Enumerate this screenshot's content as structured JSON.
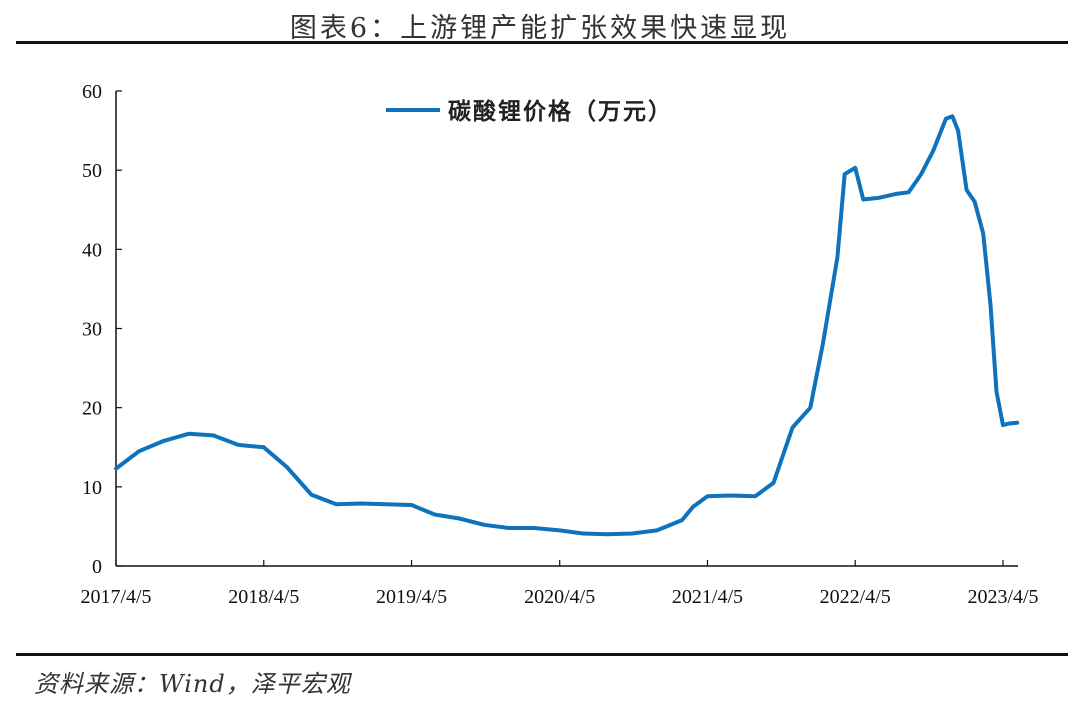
{
  "header": {
    "title": "图表6：上游锂产能扩张效果快速显现"
  },
  "footer": {
    "source": "资料来源：Wind，泽平宏观"
  },
  "chart_data": {
    "type": "line",
    "title": "图表6：上游锂产能扩张效果快速显现",
    "xlabel": "",
    "ylabel": "",
    "ylim": [
      0,
      60
    ],
    "yticks": [
      0,
      10,
      20,
      30,
      40,
      50,
      60
    ],
    "xticks": [
      "2017/4/5",
      "2018/4/5",
      "2019/4/5",
      "2020/4/5",
      "2021/4/5",
      "2022/4/5",
      "2023/4/5"
    ],
    "grid": false,
    "legend": "top-center",
    "series": [
      {
        "name": "碳酸锂价格（万元）",
        "color": "#0E72BD",
        "x": [
          "2017/4/5",
          "2017/6/1",
          "2017/8/1",
          "2017/10/1",
          "2017/12/1",
          "2018/2/1",
          "2018/4/5",
          "2018/6/1",
          "2018/8/1",
          "2018/10/1",
          "2018/12/1",
          "2019/2/1",
          "2019/4/5",
          "2019/6/1",
          "2019/8/1",
          "2019/10/1",
          "2019/12/1",
          "2020/2/1",
          "2020/4/5",
          "2020/6/1",
          "2020/8/1",
          "2020/10/1",
          "2020/12/1",
          "2021/2/1",
          "2021/3/1",
          "2021/4/5",
          "2021/6/1",
          "2021/8/1",
          "2021/9/15",
          "2021/11/1",
          "2021/12/15",
          "2022/1/15",
          "2022/2/20",
          "2022/3/10",
          "2022/4/5",
          "2022/4/25",
          "2022/6/1",
          "2022/7/15",
          "2022/8/15",
          "2022/9/15",
          "2022/10/15",
          "2022/11/15",
          "2022/12/1",
          "2022/12/15",
          "2023/1/5",
          "2023/1/25",
          "2023/2/15",
          "2023/3/5",
          "2023/3/20",
          "2023/4/5",
          "2023/4/20",
          "2023/5/10"
        ],
        "values": [
          12.3,
          14.5,
          15.8,
          16.7,
          16.5,
          15.3,
          15.0,
          12.5,
          9.0,
          7.8,
          7.9,
          7.8,
          7.7,
          6.5,
          6.0,
          5.2,
          4.8,
          4.8,
          4.5,
          4.1,
          4.0,
          4.1,
          4.5,
          5.8,
          7.5,
          8.8,
          8.9,
          8.8,
          10.5,
          17.5,
          20.0,
          28.0,
          39.0,
          49.5,
          50.3,
          46.3,
          46.5,
          47.0,
          47.2,
          49.5,
          52.5,
          56.5,
          56.8,
          55.0,
          47.5,
          46.0,
          42.0,
          33.0,
          22.0,
          17.8,
          18.0,
          18.1
        ]
      }
    ]
  }
}
